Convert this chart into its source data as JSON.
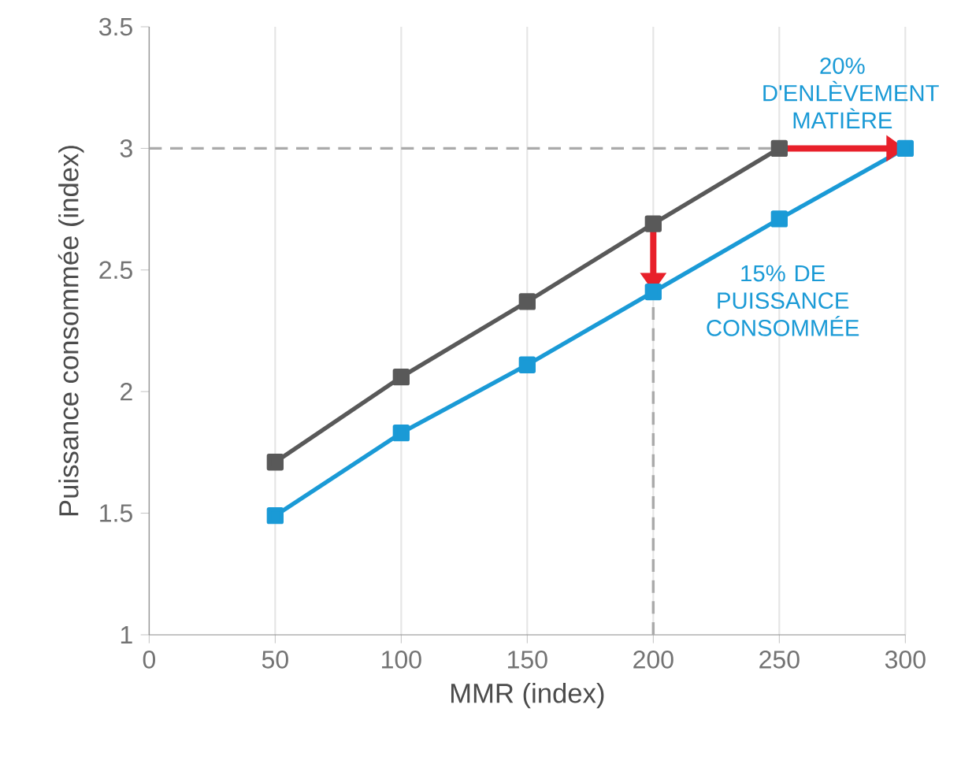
{
  "chart_data": {
    "type": "line",
    "xlabel": "MMR (index)",
    "ylabel": "Puissance consommée (index)",
    "x": [
      50,
      100,
      150,
      200,
      250,
      300
    ],
    "series": [
      {
        "color": "#595959",
        "values": [
          1.71,
          2.06,
          2.37,
          2.69,
          3.0,
          null
        ]
      },
      {
        "color": "#1a9ad6",
        "values": [
          1.49,
          1.83,
          2.11,
          2.41,
          2.71,
          3.0
        ]
      }
    ],
    "xlim": [
      0,
      300
    ],
    "xticks": [
      0,
      50,
      100,
      150,
      200,
      250,
      300
    ],
    "ylim": [
      1,
      3.5
    ],
    "yticks": [
      1,
      1.5,
      2,
      2.5,
      3,
      3.5
    ],
    "grid": "x",
    "marker": "square",
    "line_style": "solid",
    "ref_lines": [
      {
        "axis": "y",
        "value": 3,
        "color": "#aaaaaa",
        "line_style": "dashed"
      },
      {
        "axis": "x",
        "value": 200,
        "color": "#aaaaaa",
        "line_style": "dashed"
      }
    ],
    "annotations": [
      "20% D'ENLÈVEMENT MATIÈRE",
      "15% DE PUISSANCE CONSOMMÉE"
    ]
  }
}
